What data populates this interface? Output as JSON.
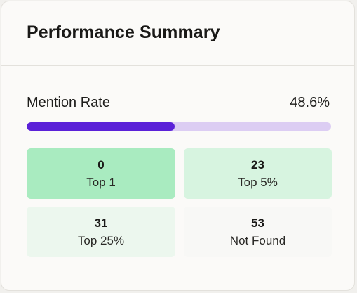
{
  "header": {
    "title": "Performance Summary"
  },
  "mention_rate": {
    "label": "Mention Rate",
    "value_text": "48.6%",
    "fraction": 0.486
  },
  "stats": [
    {
      "value": "0",
      "label": "Top 1",
      "color": "#a9ebc0"
    },
    {
      "value": "23",
      "label": "Top 5%",
      "color": "#d7f4e0"
    },
    {
      "value": "31",
      "label": "Top 25%",
      "color": "#ecf7ee"
    },
    {
      "value": "53",
      "label": "Not Found",
      "color": "#f8f8f6"
    }
  ],
  "colors": {
    "accent": "#5b21d8",
    "track": "#dccdf3"
  }
}
